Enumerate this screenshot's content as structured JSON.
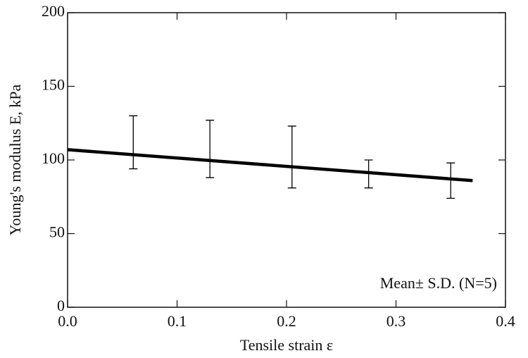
{
  "chart_data": {
    "type": "line",
    "xlabel": "Tensile strain ε",
    "ylabel": "Young's modulus E, kPa",
    "annotation": "Mean± S.D. (N=5)",
    "xlim": [
      0,
      0.4
    ],
    "xticks": [
      {
        "value": 0,
        "label": "0.0"
      },
      0.1,
      0.2,
      0.3,
      0.4
    ],
    "ylim": [
      0,
      200
    ],
    "yticks": [
      0,
      50,
      100,
      150,
      200
    ],
    "series": [
      {
        "kind": "line",
        "color": "#000000",
        "x": [
          0,
          0.37
        ],
        "values": [
          107,
          86
        ]
      },
      {
        "kind": "errorbar",
        "color": "#000000",
        "x": [
          0.06,
          0.13,
          0.205,
          0.275,
          0.35
        ],
        "values": [
          112,
          107.5,
          102,
          90.5,
          86
        ],
        "errors": [
          18,
          19.5,
          21,
          9.5,
          12
        ]
      }
    ]
  }
}
